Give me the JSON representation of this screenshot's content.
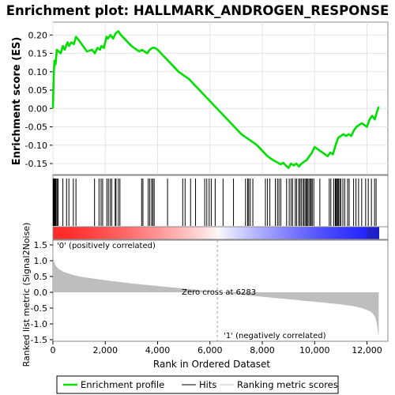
{
  "chart_data": {
    "type": "line",
    "title": "Enrichment plot: HALLMARK_ANDROGEN_RESPONSE",
    "panels": {
      "enrichment": {
        "ylabel": "Enrichment score (ES)",
        "ylim": [
          -0.18,
          0.235
        ],
        "yticks": [
          -0.15,
          -0.1,
          -0.05,
          0.0,
          0.05,
          0.1,
          0.15,
          0.2
        ],
        "ytick_labels": [
          "-0.15",
          "-0.10",
          "-0.05",
          "0.00",
          "0.05",
          "0.10",
          "0.15",
          "0.20"
        ],
        "series": [
          {
            "name": "Enrichment profile",
            "color": "#00e000",
            "x": [
              0,
              30,
              60,
              100,
              150,
              300,
              380,
              450,
              560,
              620,
              700,
              800,
              880,
              1000,
              1100,
              1200,
              1300,
              1500,
              1600,
              1700,
              1800,
              1850,
              1950,
              2050,
              2100,
              2200,
              2300,
              2400,
              2500,
              2600,
              2800,
              3000,
              3200,
              3300,
              3400,
              3500,
              3600,
              3700,
              3800,
              3900,
              4000,
              4200,
              4400,
              4600,
              4800,
              5000,
              5200,
              5400,
              5600,
              5800,
              6000,
              6200,
              6400,
              6600,
              6800,
              7000,
              7200,
              7400,
              7600,
              7800,
              8000,
              8200,
              8400,
              8600,
              8700,
              8800,
              8900,
              9000,
              9100,
              9200,
              9300,
              9400,
              9500,
              9600,
              9700,
              9800,
              9900,
              10000,
              10100,
              10200,
              10300,
              10400,
              10500,
              10600,
              10700,
              10800,
              10850,
              10900,
              11000,
              11100,
              11200,
              11300,
              11400,
              11500,
              11600,
              11700,
              11800,
              11900,
              12000,
              12100,
              12200,
              12300,
              12380,
              12450
            ],
            "y": [
              0.0,
              0.09,
              0.13,
              0.12,
              0.16,
              0.15,
              0.17,
              0.16,
              0.18,
              0.17,
              0.18,
              0.175,
              0.195,
              0.185,
              0.175,
              0.165,
              0.155,
              0.16,
              0.15,
              0.165,
              0.16,
              0.17,
              0.165,
              0.195,
              0.19,
              0.2,
              0.19,
              0.205,
              0.21,
              0.2,
              0.185,
              0.17,
              0.16,
              0.155,
              0.16,
              0.155,
              0.15,
              0.16,
              0.165,
              0.165,
              0.16,
              0.145,
              0.13,
              0.115,
              0.1,
              0.09,
              0.08,
              0.065,
              0.05,
              0.035,
              0.02,
              0.005,
              -0.01,
              -0.025,
              -0.04,
              -0.055,
              -0.07,
              -0.08,
              -0.09,
              -0.1,
              -0.115,
              -0.13,
              -0.14,
              -0.148,
              -0.152,
              -0.148,
              -0.155,
              -0.162,
              -0.15,
              -0.155,
              -0.15,
              -0.158,
              -0.15,
              -0.145,
              -0.14,
              -0.13,
              -0.12,
              -0.105,
              -0.11,
              -0.115,
              -0.12,
              -0.125,
              -0.13,
              -0.12,
              -0.125,
              -0.1,
              -0.09,
              -0.08,
              -0.075,
              -0.07,
              -0.075,
              -0.07,
              -0.075,
              -0.06,
              -0.05,
              -0.045,
              -0.04,
              -0.045,
              -0.05,
              -0.03,
              -0.02,
              -0.03,
              -0.01,
              0.005
            ]
          }
        ]
      },
      "hits": {
        "positions": [
          10,
          25,
          40,
          60,
          90,
          120,
          160,
          200,
          380,
          520,
          610,
          780,
          880,
          1590,
          1760,
          1840,
          1900,
          2060,
          2120,
          2190,
          2250,
          2380,
          2410,
          2500,
          2560,
          3390,
          3440,
          3640,
          3700,
          3770,
          3820,
          3870,
          4380,
          4960,
          5050,
          5260,
          5450,
          5800,
          5880,
          5970,
          6050,
          6200,
          6500,
          6900,
          7360,
          7440,
          7480,
          7540,
          7640,
          8120,
          8200,
          8290,
          8500,
          8580,
          8640,
          8710,
          8930,
          9030,
          9100,
          9160,
          9260,
          9310,
          9390,
          9440,
          9490,
          9560,
          9600,
          9660,
          9690,
          9730,
          9780,
          9830,
          9870,
          9910,
          9970,
          10200,
          10560,
          10620,
          10730,
          10790,
          10810,
          10840,
          10880,
          10910,
          10960,
          11000,
          11080,
          11150,
          11260,
          11320,
          11490,
          11580,
          11680,
          11800,
          11950,
          12050,
          12170,
          12290,
          12350
        ]
      },
      "ranked_metric": {
        "ylabel": "Ranked list metric (Signal2Noise)",
        "xlabel": "Rank in Ordered Dataset",
        "ylim": [
          -1.55,
          1.65
        ],
        "yticks": [
          -1.5,
          -1.0,
          -0.5,
          0.0,
          0.5,
          1.0,
          1.5
        ],
        "ytick_labels": [
          "-1.5",
          "-1.0",
          "-0.5",
          "0.0",
          "0.5",
          "1.0",
          "1.5"
        ],
        "x": [
          0,
          20,
          50,
          100,
          200,
          400,
          700,
          1000,
          2000,
          3000,
          4000,
          5000,
          6000,
          6283,
          7000,
          8000,
          9000,
          10000,
          11000,
          11500,
          11800,
          12000,
          12150,
          12250,
          12320,
          12380,
          12450
        ],
        "values": [
          1.55,
          1.1,
          0.95,
          0.85,
          0.75,
          0.65,
          0.57,
          0.5,
          0.38,
          0.28,
          0.2,
          0.12,
          0.04,
          0.0,
          -0.06,
          -0.14,
          -0.22,
          -0.3,
          -0.38,
          -0.44,
          -0.5,
          -0.56,
          -0.62,
          -0.7,
          -0.8,
          -1.0,
          -1.42
        ],
        "annotations": {
          "zero_cross": "Zero cross at 6283",
          "positive": "'0' (positively correlated)",
          "negative": "'1' (negatively correlated)"
        }
      }
    },
    "xlim": [
      0,
      12800
    ],
    "xticks": [
      0,
      2000,
      4000,
      6000,
      8000,
      10000,
      12000
    ],
    "xtick_labels": [
      "0",
      "2,000",
      "4,000",
      "6,000",
      "8,000",
      "10,000",
      "12,000"
    ],
    "heat_bar_end": 12450,
    "zero_cross": 6283,
    "legend": {
      "placement": "bottom",
      "items": [
        {
          "label": "Enrichment profile",
          "color": "#00e000"
        },
        {
          "label": "Hits",
          "color": "#000000"
        },
        {
          "label": "Ranking metric scores",
          "color": "#c0c0c0"
        }
      ]
    },
    "colors": {
      "es_line": "#00e000",
      "metric_fill": "#bebebe",
      "pos_text": "#ff0000",
      "neg_text": "#0000ff",
      "zero_line": "#a0a0a0"
    }
  }
}
